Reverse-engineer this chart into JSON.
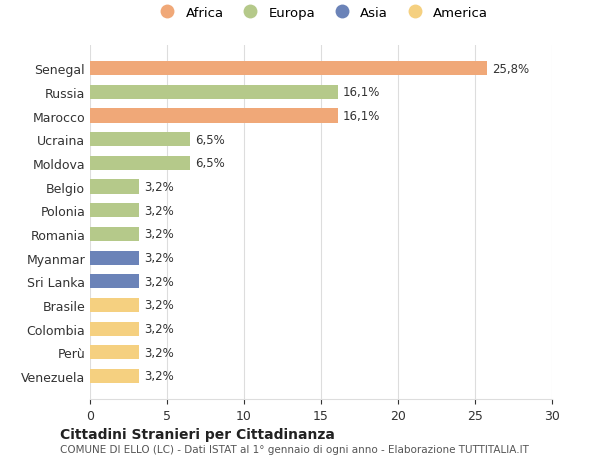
{
  "countries": [
    "Senegal",
    "Russia",
    "Marocco",
    "Ucraina",
    "Moldova",
    "Belgio",
    "Polonia",
    "Romania",
    "Myanmar",
    "Sri Lanka",
    "Brasile",
    "Colombia",
    "Perù",
    "Venezuela"
  ],
  "values": [
    25.8,
    16.1,
    16.1,
    6.5,
    6.5,
    3.2,
    3.2,
    3.2,
    3.2,
    3.2,
    3.2,
    3.2,
    3.2,
    3.2
  ],
  "continents": [
    "Africa",
    "Europa",
    "Africa",
    "Europa",
    "Europa",
    "Europa",
    "Europa",
    "Europa",
    "Asia",
    "Asia",
    "America",
    "America",
    "America",
    "America"
  ],
  "colors": {
    "Africa": "#F0A878",
    "Europa": "#B5C98A",
    "Asia": "#6B83B8",
    "America": "#F5D080"
  },
  "legend_order": [
    "Africa",
    "Europa",
    "Asia",
    "America"
  ],
  "labels": [
    "25,8%",
    "16,1%",
    "16,1%",
    "6,5%",
    "6,5%",
    "3,2%",
    "3,2%",
    "3,2%",
    "3,2%",
    "3,2%",
    "3,2%",
    "3,2%",
    "3,2%",
    "3,2%"
  ],
  "xlim": [
    0,
    30
  ],
  "xticks": [
    0,
    5,
    10,
    15,
    20,
    25,
    30
  ],
  "title": "Cittadini Stranieri per Cittadinanza",
  "subtitle": "COMUNE DI ELLO (LC) - Dati ISTAT al 1° gennaio di ogni anno - Elaborazione TUTTITALIA.IT",
  "background_color": "#ffffff",
  "grid_color": "#dddddd",
  "bar_height": 0.6
}
